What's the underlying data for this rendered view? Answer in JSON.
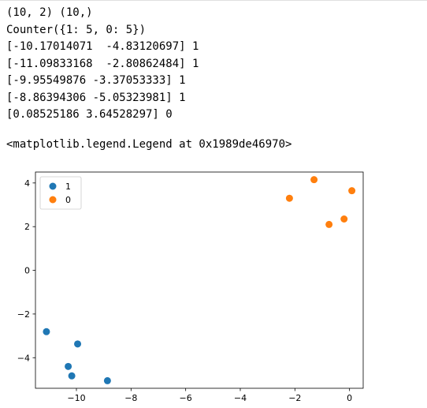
{
  "output": {
    "stream_lines": [
      "(10, 2) (10,)",
      "Counter({1: 5, 0: 5})",
      "[-10.17014071  -4.83120697] 1",
      "[-11.09833168  -2.80862484] 1",
      "[-9.95549876 -3.37053333] 1",
      "[-8.86394306 -5.05323981] 1",
      "[0.08525186 3.64528297] 0"
    ],
    "result_repr": "<matplotlib.legend.Legend at 0x1989de46970>"
  },
  "chart_data": {
    "type": "scatter",
    "title": "",
    "xlabel": "",
    "ylabel": "",
    "xlim": [
      -11.5,
      0.5
    ],
    "ylim": [
      -5.4,
      4.5
    ],
    "xticks": [
      -10,
      -8,
      -6,
      -4,
      -2,
      0
    ],
    "yticks": [
      -4,
      -2,
      0,
      2,
      4
    ],
    "xtick_labels": [
      "−10",
      "−8",
      "−6",
      "−4",
      "−2",
      "0"
    ],
    "ytick_labels": [
      "−4",
      "−2",
      "0",
      "2",
      "4"
    ],
    "grid": false,
    "legend_position": "upper-left",
    "series": [
      {
        "name": "1",
        "color": "#1f77b4",
        "points": [
          {
            "x": -10.17014071,
            "y": -4.83120697
          },
          {
            "x": -11.09833168,
            "y": -2.80862484
          },
          {
            "x": -9.95549876,
            "y": -3.37053333
          },
          {
            "x": -8.86394306,
            "y": -5.05323981
          },
          {
            "x": -10.3,
            "y": -4.4
          }
        ]
      },
      {
        "name": "0",
        "color": "#ff7f0e",
        "points": [
          {
            "x": 0.08525186,
            "y": 3.64528297
          },
          {
            "x": -1.3,
            "y": 4.15
          },
          {
            "x": -2.2,
            "y": 3.3
          },
          {
            "x": -0.75,
            "y": 2.1
          },
          {
            "x": -0.2,
            "y": 2.35
          }
        ]
      }
    ]
  }
}
